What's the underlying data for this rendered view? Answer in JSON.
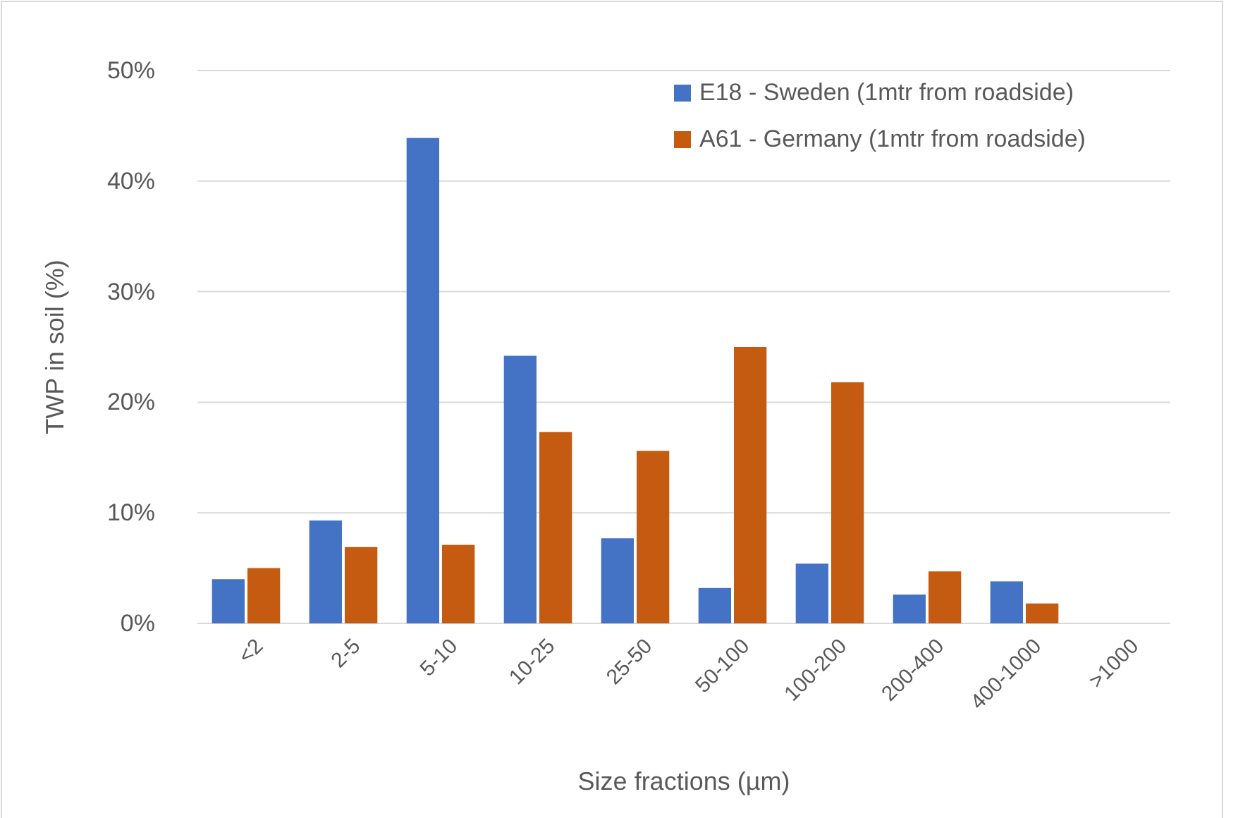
{
  "chart_data": {
    "type": "bar",
    "xlabel": "Size fractions (µm)",
    "ylabel": "TWP in soil (%)",
    "categories": [
      "<2",
      "2-5",
      "5-10",
      "10-25",
      "25-50",
      "50-100",
      "100-200",
      "200-400",
      "400-1000",
      ">1000"
    ],
    "series": [
      {
        "name": "E18 - Sweden (1mtr from roadside)",
        "color": "#4472c4",
        "values": [
          4.0,
          9.3,
          43.9,
          24.2,
          7.7,
          3.2,
          5.4,
          2.6,
          3.8,
          0
        ]
      },
      {
        "name": "A61 - Germany (1mtr from roadside)",
        "color": "#c55a11",
        "values": [
          5.0,
          6.9,
          7.1,
          17.3,
          15.6,
          25.0,
          21.8,
          4.7,
          1.8,
          0
        ]
      }
    ],
    "ylim": [
      0,
      50
    ],
    "yticks": [
      {
        "value": 0,
        "label": "0%"
      },
      {
        "value": 10,
        "label": "10%"
      },
      {
        "value": 20,
        "label": "20%"
      },
      {
        "value": 30,
        "label": "30%"
      },
      {
        "value": 40,
        "label": "40%"
      },
      {
        "value": 50,
        "label": "50%"
      }
    ],
    "grid": "y",
    "legend": "top right"
  }
}
